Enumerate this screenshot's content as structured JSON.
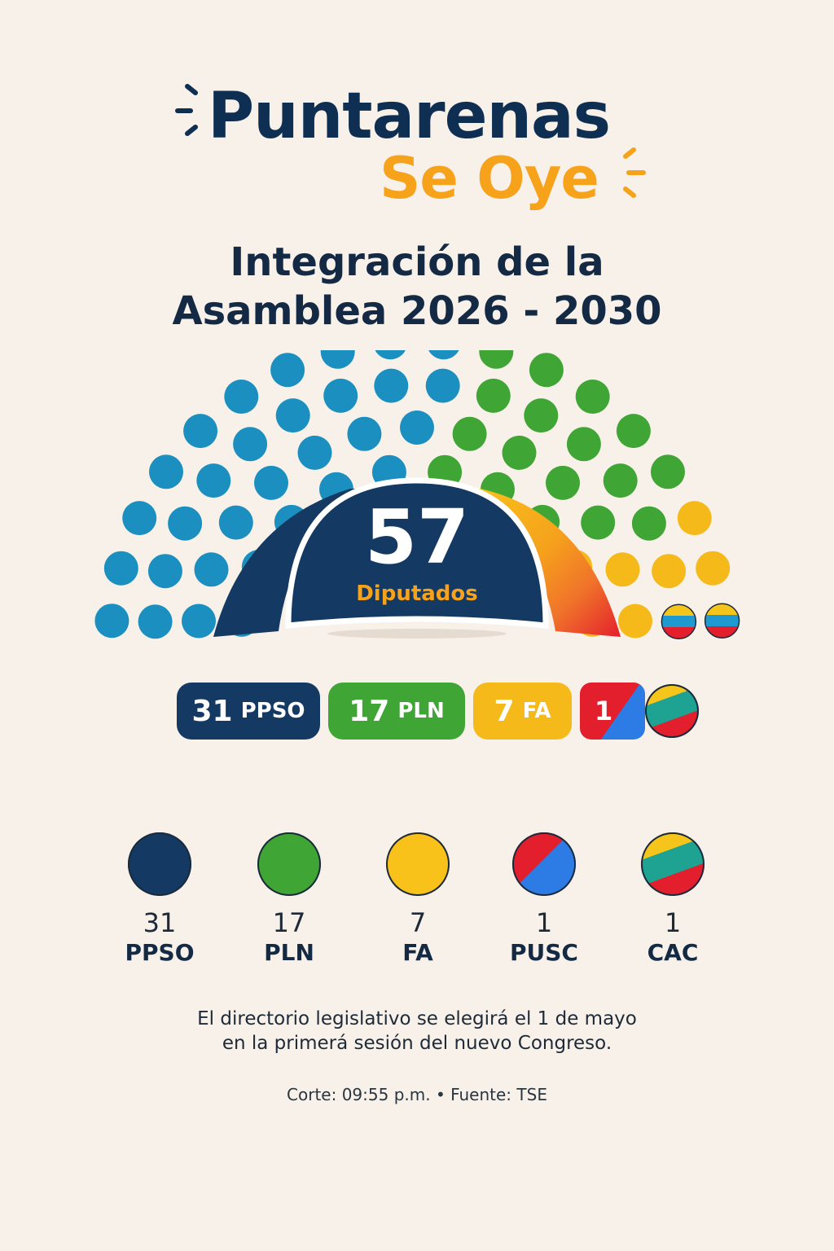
{
  "brand": {
    "line1": "Puntarenas",
    "line2": "Se Oye"
  },
  "title": {
    "line1": "Integración de la",
    "line2": "Asamblea 2026 - 2030"
  },
  "colors": {
    "background": "#f8f1ea",
    "PPSO": "#1b8fbf",
    "PPSO_dark": "#143a63",
    "PLN": "#3fa535",
    "FA": "#f5b91a",
    "PUSC_red": "#e41f2d",
    "PUSC_blue": "#2d7be5",
    "CAC_yellow": "#f5c51b",
    "CAC_teal": "#1ea393",
    "CAC_red": "#e41f2d"
  },
  "total": {
    "value": "57",
    "label": "Diputados"
  },
  "pills": [
    {
      "count": "31",
      "party": "PPSO"
    },
    {
      "count": "17",
      "party": "PLN"
    },
    {
      "count": "7",
      "party": "FA"
    },
    {
      "count": "1",
      "party": ""
    },
    {
      "count": "",
      "party": ""
    }
  ],
  "legend": [
    {
      "count": "31",
      "party": "PPSO"
    },
    {
      "count": "17",
      "party": "PLN"
    },
    {
      "count": "7",
      "party": "FA"
    },
    {
      "count": "1",
      "party": "PUSC"
    },
    {
      "count": "1",
      "party": "CAC"
    }
  ],
  "note": {
    "line1": "El directorio legislativo se elegirá el 1 de mayo",
    "line2": "en la primerá sesión del nuevo Congreso."
  },
  "source": "Corte: 09:55 p.m. • Fuente: TSE",
  "chart_data": {
    "type": "parliament",
    "title": "Integración de la Asamblea 2026 - 2030",
    "total_seats": 57,
    "categories": [
      "PPSO",
      "PLN",
      "FA",
      "PUSC",
      "CAC"
    ],
    "values": [
      31,
      17,
      7,
      1,
      1
    ],
    "legend": [
      "PPSO",
      "PLN",
      "FA",
      "PUSC",
      "CAC"
    ]
  }
}
